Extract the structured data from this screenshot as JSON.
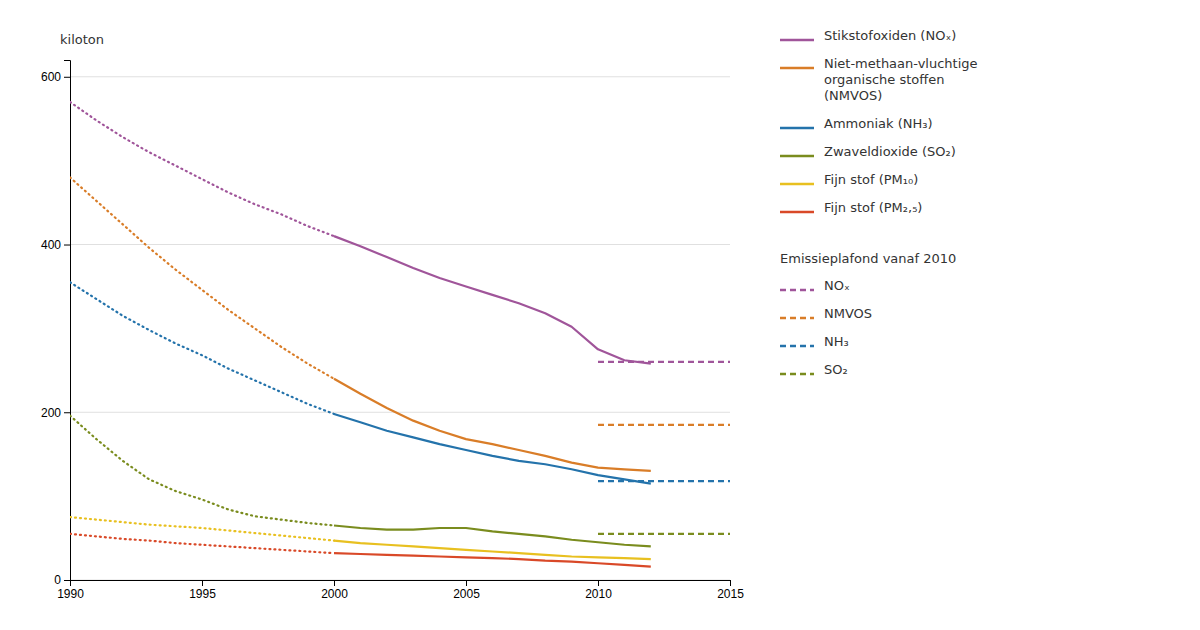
{
  "chart_data": {
    "type": "line",
    "ylabel": "kiloton",
    "xlim": [
      1990,
      2015
    ],
    "ylim": [
      0,
      620
    ],
    "xticks": [
      1990,
      1995,
      2000,
      2005,
      2010,
      2015
    ],
    "yticks": [
      0,
      200,
      400,
      600
    ],
    "grid": true,
    "legend": "right",
    "series": [
      {
        "name": "Stikstofoxiden (NOₓ)",
        "color": "#a0559a",
        "segments": [
          {
            "line_style": "dotted",
            "x": [
              1990,
              1991,
              1992,
              1993,
              1994,
              1995,
              1996,
              1997,
              1998,
              1999,
              2000
            ],
            "values": [
              570,
              548,
              528,
              510,
              494,
              478,
              462,
              448,
              436,
              422,
              410
            ]
          },
          {
            "line_style": "solid",
            "x": [
              2000,
              2001,
              2002,
              2003,
              2004,
              2005,
              2006,
              2007,
              2008,
              2009,
              2010,
              2011,
              2012
            ],
            "values": [
              410,
              398,
              385,
              372,
              360,
              350,
              340,
              330,
              318,
              302,
              275,
              262,
              258
            ]
          }
        ]
      },
      {
        "name": "Niet-methaan-vluchtige\norganische stoffen\n(NMVOS)",
        "color": "#d97d28",
        "segments": [
          {
            "line_style": "dotted",
            "x": [
              1990,
              1991,
              1992,
              1993,
              1994,
              1995,
              1996,
              1997,
              1998,
              1999,
              2000
            ],
            "values": [
              480,
              452,
              424,
              396,
              370,
              346,
              322,
              300,
              278,
              258,
              240
            ]
          },
          {
            "line_style": "solid",
            "x": [
              2000,
              2001,
              2002,
              2003,
              2004,
              2005,
              2006,
              2007,
              2008,
              2009,
              2010,
              2011,
              2012
            ],
            "values": [
              240,
              222,
              205,
              190,
              178,
              168,
              162,
              155,
              148,
              140,
              134,
              132,
              130
            ]
          }
        ]
      },
      {
        "name": "Ammoniak (NH₃)",
        "color": "#2473ab",
        "segments": [
          {
            "line_style": "dotted",
            "x": [
              1990,
              1991,
              1992,
              1993,
              1994,
              1995,
              1996,
              1997,
              1998,
              1999,
              2000
            ],
            "values": [
              355,
              335,
              315,
              298,
              282,
              268,
              252,
              238,
              224,
              210,
              198
            ]
          },
          {
            "line_style": "solid",
            "x": [
              2000,
              2001,
              2002,
              2003,
              2004,
              2005,
              2006,
              2007,
              2008,
              2009,
              2010,
              2011,
              2012
            ],
            "values": [
              198,
              188,
              178,
              170,
              162,
              155,
              148,
              142,
              138,
              132,
              125,
              120,
              115
            ]
          }
        ]
      },
      {
        "name": "Zwaveldioxide (SO₂)",
        "color": "#7a8c1e",
        "segments": [
          {
            "line_style": "dotted",
            "x": [
              1990,
              1991,
              1992,
              1993,
              1994,
              1995,
              1996,
              1997,
              1998,
              1999,
              2000
            ],
            "values": [
              196,
              168,
              142,
              120,
              106,
              96,
              84,
              76,
              72,
              68,
              65
            ]
          },
          {
            "line_style": "solid",
            "x": [
              2000,
              2001,
              2002,
              2003,
              2004,
              2005,
              2006,
              2007,
              2008,
              2009,
              2010,
              2011,
              2012
            ],
            "values": [
              65,
              62,
              60,
              60,
              62,
              62,
              58,
              55,
              52,
              48,
              45,
              42,
              40
            ]
          }
        ]
      },
      {
        "name": "Fijn stof (PM₁₀)",
        "color": "#e8c020",
        "segments": [
          {
            "line_style": "dotted",
            "x": [
              1990,
              1991,
              1992,
              1993,
              1994,
              1995,
              1996,
              1997,
              1998,
              1999,
              2000
            ],
            "values": [
              75,
              72,
              69,
              66,
              64,
              62,
              59,
              56,
              53,
              50,
              47
            ]
          },
          {
            "line_style": "solid",
            "x": [
              2000,
              2001,
              2002,
              2003,
              2004,
              2005,
              2006,
              2007,
              2008,
              2009,
              2010,
              2011,
              2012
            ],
            "values": [
              47,
              44,
              42,
              40,
              38,
              36,
              34,
              32,
              30,
              28,
              27,
              26,
              25
            ]
          }
        ]
      },
      {
        "name": "Fijn stof (PM₂,₅)",
        "color": "#d94928",
        "segments": [
          {
            "line_style": "dotted",
            "x": [
              1990,
              1991,
              1992,
              1993,
              1994,
              1995,
              1996,
              1997,
              1998,
              1999,
              2000
            ],
            "values": [
              55,
              52,
              49,
              47,
              44,
              42,
              40,
              38,
              36,
              34,
              32
            ]
          },
          {
            "line_style": "solid",
            "x": [
              2000,
              2001,
              2002,
              2003,
              2004,
              2005,
              2006,
              2007,
              2008,
              2009,
              2010,
              2011,
              2012
            ],
            "values": [
              32,
              31,
              30,
              29,
              28,
              27,
              26,
              25,
              23,
              22,
              20,
              18,
              16
            ]
          }
        ]
      }
    ],
    "ceilings": {
      "title": "Emissieplafond vanaf 2010",
      "series": [
        {
          "name": "NOₓ",
          "color": "#a0559a",
          "line_style": "dashed",
          "x": [
            2010,
            2015
          ],
          "values": [
            260,
            260
          ]
        },
        {
          "name": "NMVOS",
          "color": "#d97d28",
          "line_style": "dashed",
          "x": [
            2010,
            2015
          ],
          "values": [
            185,
            185
          ]
        },
        {
          "name": "NH₃",
          "color": "#2473ab",
          "line_style": "dashed",
          "x": [
            2010,
            2015
          ],
          "values": [
            118,
            118
          ]
        },
        {
          "name": "SO₂",
          "color": "#7a8c1e",
          "line_style": "dashed",
          "x": [
            2010,
            2015
          ],
          "values": [
            55,
            55
          ]
        }
      ]
    }
  }
}
